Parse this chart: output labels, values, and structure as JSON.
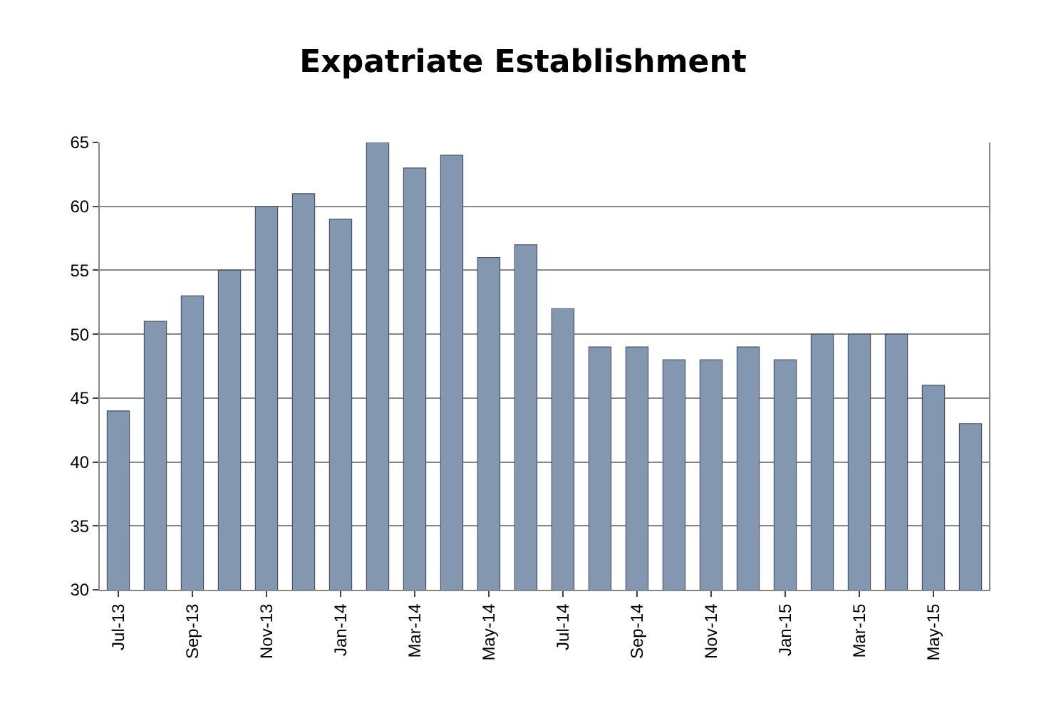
{
  "chart_data": {
    "type": "bar",
    "title": "Expatriate Establishment",
    "categories": [
      "Jul-13",
      null,
      "Sep-13",
      null,
      "Nov-13",
      null,
      "Jan-14",
      null,
      "Mar-14",
      null,
      "May-14",
      null,
      "Jul-14",
      null,
      "Sep-14",
      null,
      "Nov-14",
      null,
      "Jan-15",
      null,
      "Mar-15",
      null,
      "May-15",
      null
    ],
    "values": [
      44,
      51,
      53,
      55,
      60,
      61,
      59,
      65,
      63,
      64,
      56,
      57,
      52,
      49,
      49,
      48,
      48,
      49,
      48,
      50,
      50,
      50,
      46,
      43
    ],
    "color": "#8497b0",
    "ylim": [
      30,
      65
    ],
    "yticks": [
      30,
      35,
      40,
      45,
      50,
      55,
      60,
      65
    ],
    "grid": "y"
  }
}
